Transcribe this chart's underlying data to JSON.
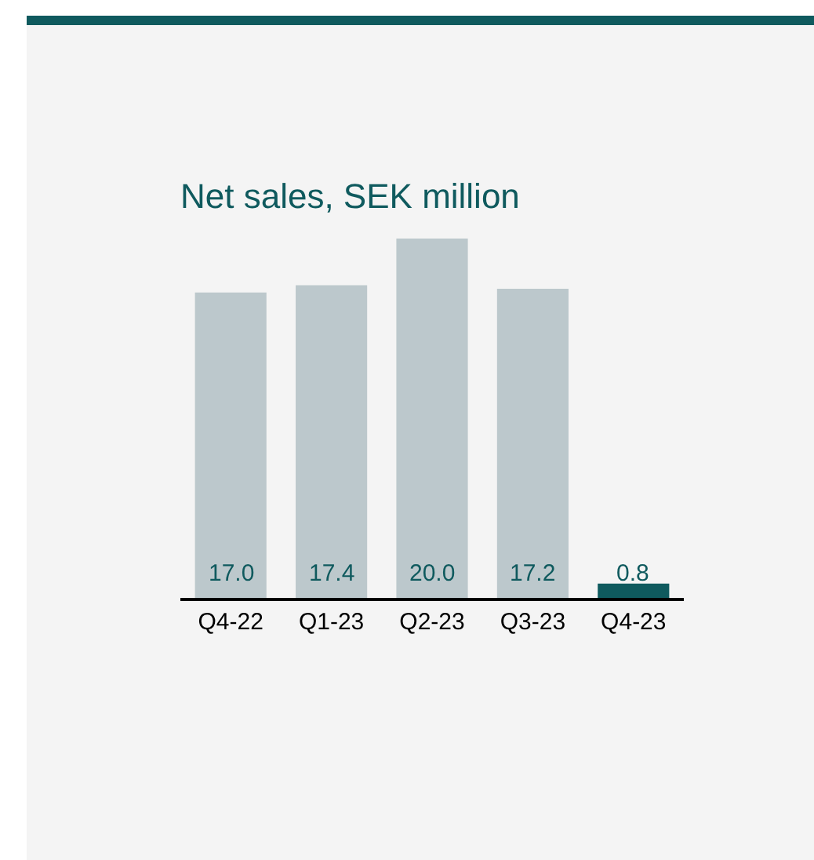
{
  "chart_data": {
    "type": "bar",
    "title": "Net sales, SEK million",
    "categories": [
      "Q4-22",
      "Q1-23",
      "Q2-23",
      "Q3-23",
      "Q4-23"
    ],
    "values": [
      17.0,
      17.4,
      20.0,
      17.2,
      0.8
    ],
    "colors": [
      "#bcc8cc",
      "#bcc8cc",
      "#bcc8cc",
      "#bcc8cc",
      "#0f5a5e"
    ],
    "ylim": [
      0,
      20
    ],
    "value_labels": [
      "17.0",
      "17.4",
      "20.0",
      "17.2",
      "0.8"
    ]
  }
}
